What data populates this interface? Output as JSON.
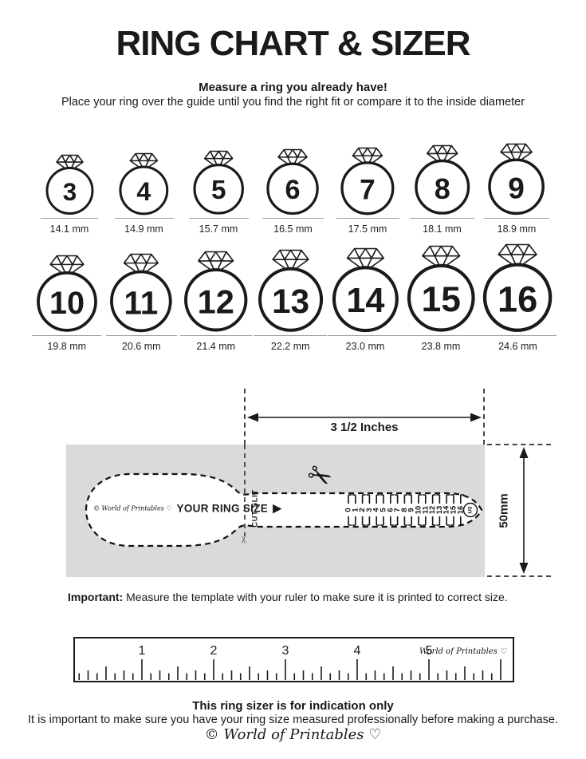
{
  "page": {
    "title": "RING CHART & SIZER"
  },
  "intro": {
    "heading": "Measure a ring you already have!",
    "body": "Place your ring over the guide until you find the right fit or compare it to the inside diameter"
  },
  "ring_chart": {
    "rows": [
      {
        "rings": [
          {
            "size": "3",
            "diameter": "14.1 mm"
          },
          {
            "size": "4",
            "diameter": "14.9 mm"
          },
          {
            "size": "5",
            "diameter": "15.7 mm"
          },
          {
            "size": "6",
            "diameter": "16.5 mm"
          },
          {
            "size": "7",
            "diameter": "17.5 mm"
          },
          {
            "size": "8",
            "diameter": "18.1 mm"
          },
          {
            "size": "9",
            "diameter": "18.9 mm"
          }
        ]
      },
      {
        "rings": [
          {
            "size": "10",
            "diameter": "19.8 mm"
          },
          {
            "size": "11",
            "diameter": "20.6 mm"
          },
          {
            "size": "12",
            "diameter": "21.4 mm"
          },
          {
            "size": "13",
            "diameter": "22.2 mm"
          },
          {
            "size": "14",
            "diameter": "23.0 mm"
          },
          {
            "size": "15",
            "diameter": "23.8 mm"
          },
          {
            "size": "16",
            "diameter": "24.6 mm"
          }
        ]
      }
    ]
  },
  "sizer": {
    "width_label": "3 1/2 Inches",
    "height_label": "50mm",
    "brand_label": "© World of Printables ♡",
    "your_ring_size_label": "YOUR RING SIZE",
    "cut_slit_label": "CUT SLIT",
    "us_label": "US",
    "scale_numbers": [
      "0",
      "1",
      "2",
      "3",
      "4",
      "5",
      "6",
      "7",
      "8",
      "9",
      "10",
      "11",
      "12",
      "13",
      "14",
      "15",
      "16"
    ],
    "icons": {
      "scissors": "✂",
      "pointer": "▶"
    }
  },
  "important_note": {
    "prefix": "Important:",
    "text": " Measure the template with your ruler to make sure it is printed to correct size."
  },
  "ruler": {
    "numbers": [
      "1",
      "2",
      "3",
      "4",
      "5"
    ],
    "brand_label": "World of Printables ♡"
  },
  "footer": {
    "heading": "This ring sizer is for indication only",
    "body": "It is important to make sure you have your ring size measured professionally before making a purchase.",
    "brand": "© World of Printables ♡"
  },
  "colors": {
    "ink": "#1a1a1a",
    "template_bg": "#dadada",
    "underline": "#9b9ba6"
  }
}
